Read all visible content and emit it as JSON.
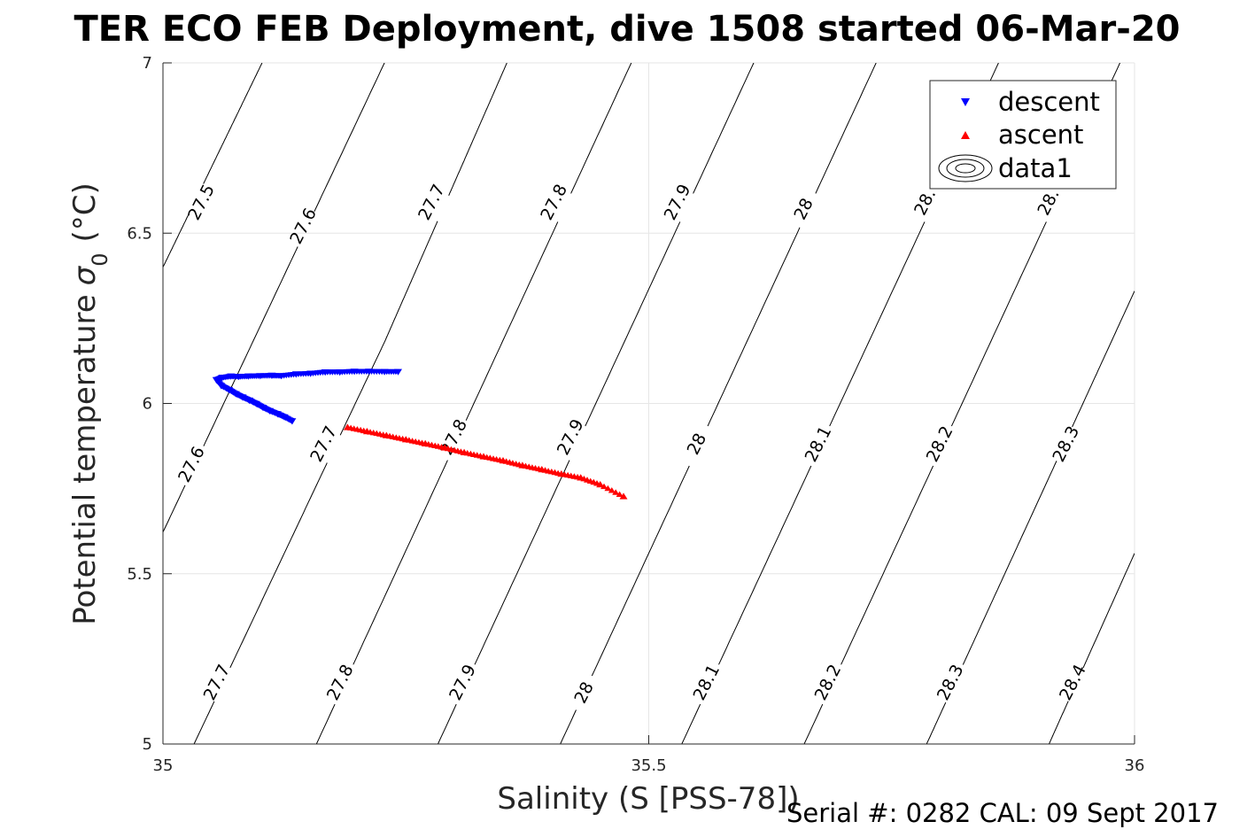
{
  "chart_data": {
    "type": "scatter",
    "title": "TER ECO FEB Deployment, dive 1508 started 06-Mar-20",
    "xlabel": "Salinity (S [PSS-78])",
    "ylabel": "Potential temperature",
    "ylabel_sigma": "σ",
    "ylabel_sub": "0",
    "ylabel_unit": "(°C)",
    "xlim": [
      35,
      36
    ],
    "ylim": [
      5,
      7
    ],
    "x_ticks": [
      35,
      35.5,
      36
    ],
    "x_tick_labels": [
      "35",
      "35.5",
      "36"
    ],
    "y_ticks": [
      5,
      5.5,
      6,
      6.5,
      7
    ],
    "y_tick_labels": [
      "5",
      "5.5",
      "6",
      "6.5",
      "7"
    ],
    "grid": true,
    "legend_position": "top-right",
    "legend": [
      "descent",
      "ascent",
      "data1"
    ],
    "series": [
      {
        "name": "descent",
        "marker": "down-triangle",
        "color": "#0000ff",
        "x": [
          35.133,
          35.125,
          35.118,
          35.11,
          35.103,
          35.096,
          35.089,
          35.082,
          35.075,
          35.068,
          35.06,
          35.055,
          35.061,
          35.07,
          35.078,
          35.088,
          35.1,
          35.112,
          35.122,
          35.137,
          35.152,
          35.167,
          35.182,
          35.197,
          35.212,
          35.228,
          35.242
        ],
        "y": [
          5.948,
          5.96,
          5.969,
          5.978,
          5.988,
          5.999,
          6.009,
          6.018,
          6.028,
          6.04,
          6.052,
          6.069,
          6.076,
          6.08,
          6.079,
          6.08,
          6.081,
          6.082,
          6.081,
          6.086,
          6.088,
          6.092,
          6.092,
          6.094,
          6.094,
          6.093,
          6.093
        ]
      },
      {
        "name": "ascent",
        "marker": "up-triangle",
        "color": "#ff0000",
        "x": [
          35.19,
          35.21,
          35.23,
          35.25,
          35.27,
          35.29,
          35.31,
          35.33,
          35.35,
          35.37,
          35.39,
          35.41,
          35.43,
          35.45,
          35.474
        ],
        "y": [
          5.93,
          5.918,
          5.906,
          5.894,
          5.882,
          5.87,
          5.856,
          5.844,
          5.832,
          5.818,
          5.806,
          5.793,
          5.782,
          5.762,
          5.727
        ]
      }
    ],
    "contour_series": {
      "name": "data1",
      "lines": [
        {
          "name": "27.5",
          "x": [
            35.0,
            35.102
          ],
          "y": [
            6.4,
            7.0
          ]
        },
        {
          "name": "27.6",
          "x": [
            35.0,
            35.228
          ],
          "y": [
            5.622,
            7.0
          ]
        },
        {
          "name": "27.7",
          "x": [
            35.032,
            35.163,
            35.228,
            35.354
          ],
          "y": [
            5.0,
            5.79,
            6.18,
            7.0
          ]
        },
        {
          "name": "27.8",
          "x": [
            35.158,
            35.482
          ],
          "y": [
            5.0,
            7.0
          ]
        },
        {
          "name": "27.9",
          "x": [
            35.283,
            35.608
          ],
          "y": [
            5.0,
            7.0
          ]
        },
        {
          "name": "28",
          "x": [
            35.409,
            35.734
          ],
          "y": [
            5.0,
            7.0
          ]
        },
        {
          "name": "28.1",
          "x": [
            35.534,
            35.86
          ],
          "y": [
            5.0,
            7.0
          ]
        },
        {
          "name": "28.2",
          "x": [
            35.66,
            35.985
          ],
          "y": [
            5.0,
            7.0
          ]
        },
        {
          "name": "28.3",
          "x": [
            35.786,
            36.0
          ],
          "y": [
            5.0,
            6.33
          ]
        },
        {
          "name": "28.4",
          "x": [
            35.912,
            36.0
          ],
          "y": [
            5.0,
            5.56
          ]
        }
      ],
      "labels": [
        {
          "text": "27.5",
          "x": 35.04,
          "y": 6.59
        },
        {
          "text": "27.6",
          "x": 35.145,
          "y": 6.52
        },
        {
          "text": "27.7",
          "x": 35.277,
          "y": 6.59
        },
        {
          "text": "27.8",
          "x": 35.403,
          "y": 6.59
        },
        {
          "text": "27.9",
          "x": 35.53,
          "y": 6.59
        },
        {
          "text": "28",
          "x": 35.66,
          "y": 6.57
        },
        {
          "text": "28.",
          "x": 35.785,
          "y": 6.59
        },
        {
          "text": "28.",
          "x": 35.912,
          "y": 6.59
        },
        {
          "text": "27.6",
          "x": 35.03,
          "y": 5.82
        },
        {
          "text": "27.7",
          "x": 35.166,
          "y": 5.88
        },
        {
          "text": "27.8",
          "x": 35.3,
          "y": 5.9
        },
        {
          "text": "27.9",
          "x": 35.42,
          "y": 5.9
        },
        {
          "text": "28",
          "x": 35.55,
          "y": 5.88
        },
        {
          "text": "28.1",
          "x": 35.675,
          "y": 5.88
        },
        {
          "text": "28.2",
          "x": 35.8,
          "y": 5.88
        },
        {
          "text": "28.3",
          "x": 35.93,
          "y": 5.88
        },
        {
          "text": "27.7",
          "x": 35.056,
          "y": 5.18
        },
        {
          "text": "27.8",
          "x": 35.183,
          "y": 5.18
        },
        {
          "text": "27.9",
          "x": 35.309,
          "y": 5.18
        },
        {
          "text": "28",
          "x": 35.434,
          "y": 5.15
        },
        {
          "text": "28.1",
          "x": 35.56,
          "y": 5.18
        },
        {
          "text": "28.2",
          "x": 35.685,
          "y": 5.18
        },
        {
          "text": "28.3",
          "x": 35.811,
          "y": 5.18
        },
        {
          "text": "28.4",
          "x": 35.937,
          "y": 5.18
        }
      ]
    }
  },
  "footer": {
    "text": "Serial #: 0282  CAL: 09 Sept 2017"
  },
  "colors": {
    "descent": "#0000ff",
    "ascent": "#ff0000",
    "contour": "#000000",
    "grid": "#e6e6e6",
    "axis": "#262626"
  }
}
